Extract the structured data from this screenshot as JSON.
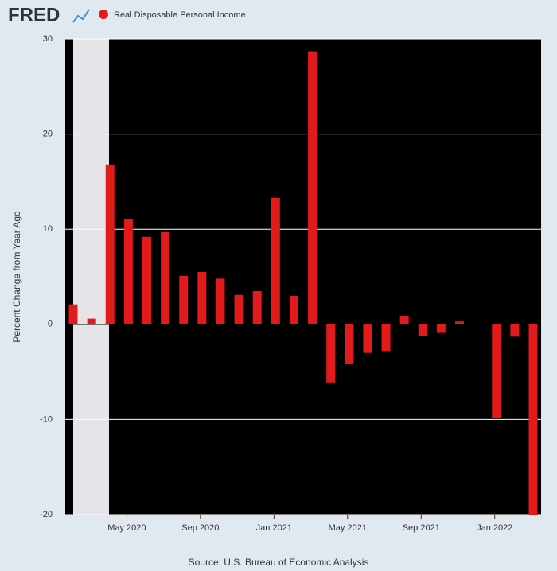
{
  "logo": "FRED",
  "chart_data": {
    "type": "bar",
    "series": [
      {
        "name": "Real Disposable Personal Income",
        "color": "#e31a1c",
        "values": [
          2.1,
          0.6,
          16.8,
          11.1,
          9.2,
          9.7,
          5.1,
          5.5,
          4.8,
          3.1,
          3.5,
          13.3,
          3.0,
          28.7,
          -6.1,
          -4.2,
          -3.0,
          -2.8,
          0.9,
          -1.2,
          -0.9,
          0.3,
          0.0,
          -9.8,
          -1.3,
          -20.5
        ]
      }
    ],
    "categories": [
      null,
      null,
      null,
      "May 2020",
      null,
      null,
      null,
      "Sep 2020",
      null,
      null,
      null,
      "Jan 2021",
      null,
      null,
      null,
      "May 2021",
      null,
      null,
      null,
      "Sep 2021",
      null,
      null,
      null,
      "Jan 2022",
      null,
      null
    ],
    "ylabel": "Percent Change from Year Ago",
    "ylim": [
      -20,
      30
    ],
    "yticks": [
      -20,
      -10,
      0,
      10,
      20,
      30
    ],
    "grid": true,
    "background": "#000000",
    "source": "Source: U.S. Bureau of Economic Analysis"
  }
}
